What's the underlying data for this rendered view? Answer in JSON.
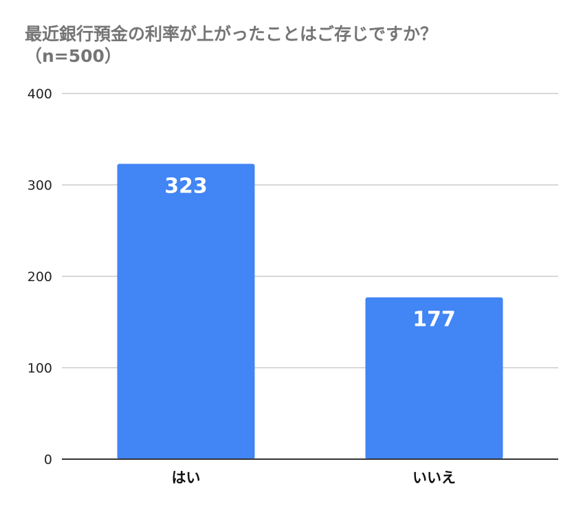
{
  "chart_data": {
    "type": "bar",
    "title_line1": "最近銀行預金の利率が上がったことはご存じですか？",
    "title_line2": "（n=500）",
    "categories": [
      "はい",
      "いいえ"
    ],
    "values": [
      323,
      177
    ],
    "ylim": [
      0,
      400
    ],
    "yticks": [
      0,
      100,
      200,
      300,
      400
    ],
    "bar_color": "#4285F4",
    "grid": true,
    "legend": "none"
  }
}
